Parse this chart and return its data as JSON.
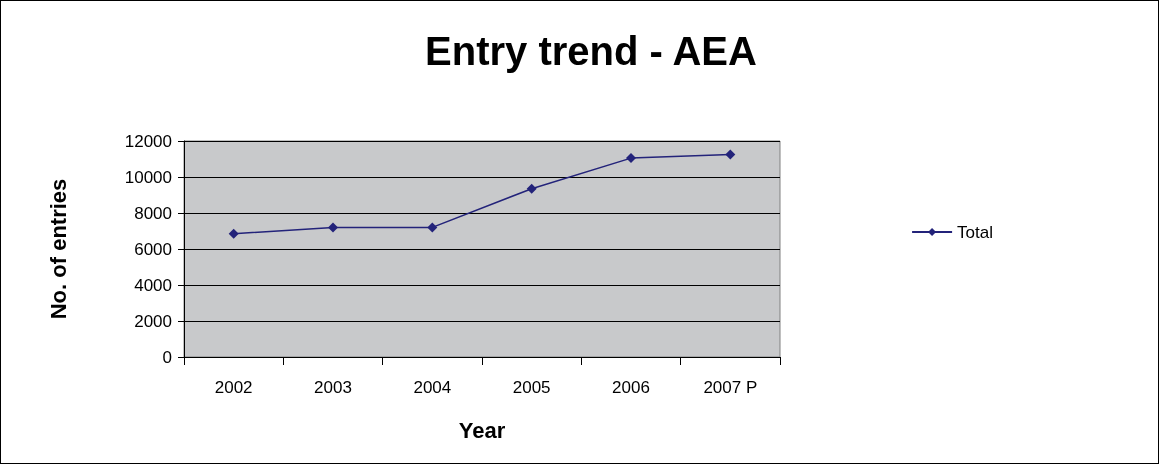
{
  "chart_data": {
    "type": "line",
    "title": "Entry trend - AEA",
    "xlabel": "Year",
    "ylabel": "No. of entries",
    "categories": [
      "2002",
      "2003",
      "2004",
      "2005",
      "2006",
      "2007 P"
    ],
    "series": [
      {
        "name": "Total",
        "color": "#23237a",
        "values": [
          6850,
          7200,
          7200,
          9350,
          11050,
          11250
        ]
      }
    ],
    "ylim": [
      0,
      12000
    ],
    "yticks": [
      0,
      2000,
      4000,
      6000,
      8000,
      10000,
      12000
    ],
    "grid": "y",
    "legend": "right",
    "marker": "diamond",
    "line_style": "solid"
  }
}
